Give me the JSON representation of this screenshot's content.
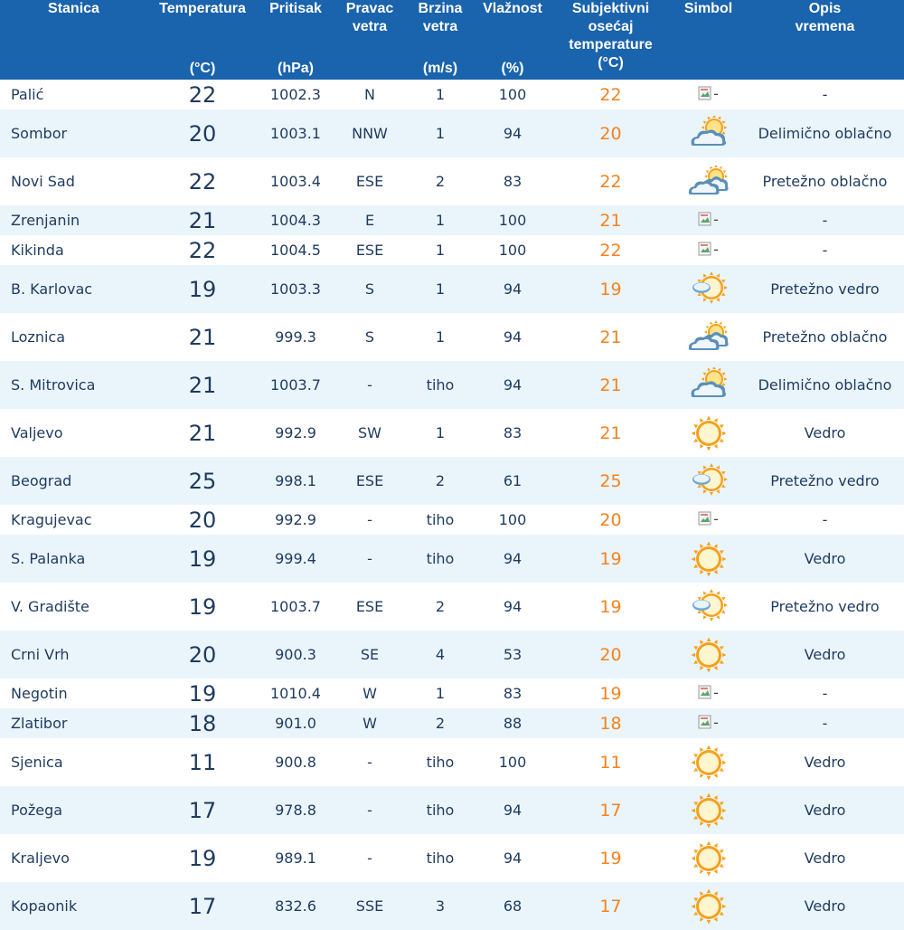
{
  "header": {
    "station": "Stanica",
    "temperature": "Temperatura",
    "temperature_unit": "(°C)",
    "pressure": "Pritisak",
    "pressure_unit": "(hPa)",
    "wind_dir_1": "Pravac",
    "wind_dir_2": "vetra",
    "wind_speed_1": "Brzina",
    "wind_speed_2": "vetra",
    "wind_speed_unit": "(m/s)",
    "humidity": "Vlažnost",
    "humidity_unit": "(%)",
    "feels_1": "Subjektivni",
    "feels_2": "osećaj",
    "feels_3": "temperature",
    "feels_unit": "(°C)",
    "symbol": "Simbol",
    "desc_1": "Opis",
    "desc_2": "vremena"
  },
  "colors": {
    "header_bg": "#1a63ad",
    "row_alt": "#eaf5fb",
    "text": "#1e3a5f",
    "feels": "#f5821f"
  },
  "rows": [
    {
      "station": "Palić",
      "temp": "22",
      "pressure": "1002.3",
      "dir": "N",
      "speed": "1",
      "humidity": "100",
      "feels": "22",
      "symbol": "broken-image-icon",
      "desc": "-"
    },
    {
      "station": "Sombor",
      "temp": "20",
      "pressure": "1003.1",
      "dir": "NNW",
      "speed": "1",
      "humidity": "94",
      "feels": "20",
      "symbol": "partly-cloudy-icon",
      "desc": "Delimično oblačno"
    },
    {
      "station": "Novi Sad",
      "temp": "22",
      "pressure": "1003.4",
      "dir": "ESE",
      "speed": "2",
      "humidity": "83",
      "feels": "22",
      "symbol": "mostly-cloudy-icon",
      "desc": "Pretežno oblačno"
    },
    {
      "station": "Zrenjanin",
      "temp": "21",
      "pressure": "1004.3",
      "dir": "E",
      "speed": "1",
      "humidity": "100",
      "feels": "21",
      "symbol": "broken-image-icon",
      "desc": "-"
    },
    {
      "station": "Kikinda",
      "temp": "22",
      "pressure": "1004.5",
      "dir": "ESE",
      "speed": "1",
      "humidity": "100",
      "feels": "22",
      "symbol": "broken-image-icon",
      "desc": "-"
    },
    {
      "station": "B. Karlovac",
      "temp": "19",
      "pressure": "1003.3",
      "dir": "S",
      "speed": "1",
      "humidity": "94",
      "feels": "19",
      "symbol": "mostly-sunny-icon",
      "desc": "Pretežno vedro"
    },
    {
      "station": "Loznica",
      "temp": "21",
      "pressure": "999.3",
      "dir": "S",
      "speed": "1",
      "humidity": "94",
      "feels": "21",
      "symbol": "mostly-cloudy-icon",
      "desc": "Pretežno oblačno"
    },
    {
      "station": "S. Mitrovica",
      "temp": "21",
      "pressure": "1003.7",
      "dir": "-",
      "speed": "tiho",
      "humidity": "94",
      "feels": "21",
      "symbol": "partly-cloudy-icon",
      "desc": "Delimično oblačno"
    },
    {
      "station": "Valjevo",
      "temp": "21",
      "pressure": "992.9",
      "dir": "SW",
      "speed": "1",
      "humidity": "83",
      "feels": "21",
      "symbol": "sun-icon",
      "desc": "Vedro"
    },
    {
      "station": "Beograd",
      "temp": "25",
      "pressure": "998.1",
      "dir": "ESE",
      "speed": "2",
      "humidity": "61",
      "feels": "25",
      "symbol": "mostly-sunny-icon",
      "desc": "Pretežno vedro"
    },
    {
      "station": "Kragujevac",
      "temp": "20",
      "pressure": "992.9",
      "dir": "-",
      "speed": "tiho",
      "humidity": "100",
      "feels": "20",
      "symbol": "broken-image-icon",
      "desc": "-"
    },
    {
      "station": "S. Palanka",
      "temp": "19",
      "pressure": "999.4",
      "dir": "-",
      "speed": "tiho",
      "humidity": "94",
      "feels": "19",
      "symbol": "sun-icon",
      "desc": "Vedro"
    },
    {
      "station": "V. Gradište",
      "temp": "19",
      "pressure": "1003.7",
      "dir": "ESE",
      "speed": "2",
      "humidity": "94",
      "feels": "19",
      "symbol": "mostly-sunny-icon",
      "desc": "Pretežno vedro"
    },
    {
      "station": "Crni Vrh",
      "temp": "20",
      "pressure": "900.3",
      "dir": "SE",
      "speed": "4",
      "humidity": "53",
      "feels": "20",
      "symbol": "sun-icon",
      "desc": "Vedro"
    },
    {
      "station": "Negotin",
      "temp": "19",
      "pressure": "1010.4",
      "dir": "W",
      "speed": "1",
      "humidity": "83",
      "feels": "19",
      "symbol": "broken-image-icon",
      "desc": "-"
    },
    {
      "station": "Zlatibor",
      "temp": "18",
      "pressure": "901.0",
      "dir": "W",
      "speed": "2",
      "humidity": "88",
      "feels": "18",
      "symbol": "broken-image-icon",
      "desc": "-"
    },
    {
      "station": "Sjenica",
      "temp": "11",
      "pressure": "900.8",
      "dir": "-",
      "speed": "tiho",
      "humidity": "100",
      "feels": "11",
      "symbol": "sun-icon",
      "desc": "Vedro"
    },
    {
      "station": "Požega",
      "temp": "17",
      "pressure": "978.8",
      "dir": "-",
      "speed": "tiho",
      "humidity": "94",
      "feels": "17",
      "symbol": "sun-icon",
      "desc": "Vedro"
    },
    {
      "station": "Kraljevo",
      "temp": "19",
      "pressure": "989.1",
      "dir": "-",
      "speed": "tiho",
      "humidity": "94",
      "feels": "19",
      "symbol": "sun-icon",
      "desc": "Vedro"
    },
    {
      "station": "Kopaonik",
      "temp": "17",
      "pressure": "832.6",
      "dir": "SSE",
      "speed": "3",
      "humidity": "68",
      "feels": "17",
      "symbol": "sun-icon",
      "desc": "Vedro"
    }
  ]
}
